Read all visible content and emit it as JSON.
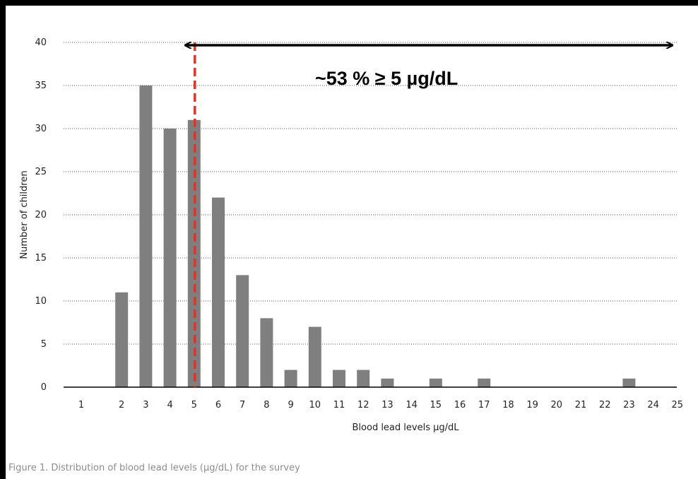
{
  "caption": "Figure 1. Distribution of blood lead levels (µg/dL) for the survey",
  "annotation": {
    "text": "~53 % ≥ 5 µg/dL",
    "threshold_x": 5
  },
  "colors": {
    "bar": "#7f7f7f",
    "threshold_line": "#e53222",
    "grid": "#555555",
    "arrow": "#000000"
  },
  "chart_data": {
    "type": "bar",
    "categories": [
      "1",
      "2",
      "3",
      "4",
      "5",
      "6",
      "7",
      "8",
      "9",
      "10",
      "11",
      "12",
      "13",
      "14",
      "15",
      "16",
      "17",
      "18",
      "19",
      "20",
      "21",
      "22",
      "23",
      "24",
      "25"
    ],
    "values": [
      0,
      11,
      35,
      30,
      31,
      22,
      13,
      8,
      2,
      7,
      2,
      2,
      1,
      0,
      1,
      0,
      1,
      0,
      0,
      0,
      0,
      0,
      1,
      0,
      0
    ],
    "title": "",
    "xlabel": "Blood lead levels µg/dL",
    "ylabel": "Number of children",
    "ylim": [
      0,
      40
    ],
    "yticks": [
      0,
      5,
      10,
      15,
      20,
      25,
      30,
      35,
      40
    ],
    "grid": "horizontal dotted"
  }
}
